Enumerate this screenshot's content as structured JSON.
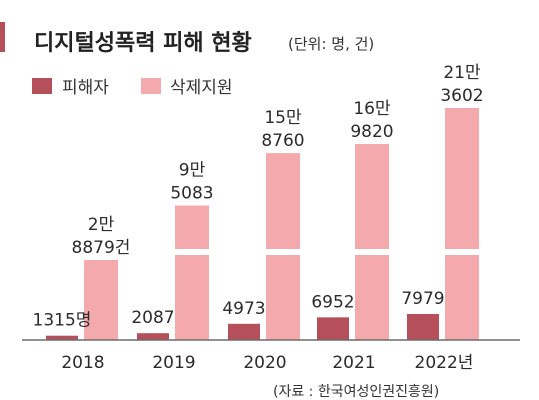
{
  "chart_data": {
    "type": "bar",
    "title": "디지털성폭력 피해 현황",
    "unit": "(단위: 명, 건)",
    "categories": [
      "2018",
      "2019",
      "2020",
      "2021",
      "2022년"
    ],
    "series": [
      {
        "name": "피해자",
        "color": "#b5505a",
        "values": [
          1315,
          2087,
          4973,
          6952,
          7979
        ],
        "labels": [
          "1315명",
          "2087",
          "4973",
          "6952",
          "7979"
        ]
      },
      {
        "name": "삭제지원",
        "color": "#f4a9ad",
        "values": [
          28879,
          95083,
          158760,
          169820,
          213602
        ],
        "labels": [
          [
            "2만",
            "8879건"
          ],
          [
            "9만",
            "5083"
          ],
          [
            "15만",
            "8760"
          ],
          [
            "16만",
            "9820"
          ],
          [
            "21만",
            "3602"
          ]
        ]
      }
    ],
    "axis_break": true,
    "grid": false,
    "legend_position": "top-left",
    "source": "(자료 : 한국여성인권진흥원)"
  }
}
